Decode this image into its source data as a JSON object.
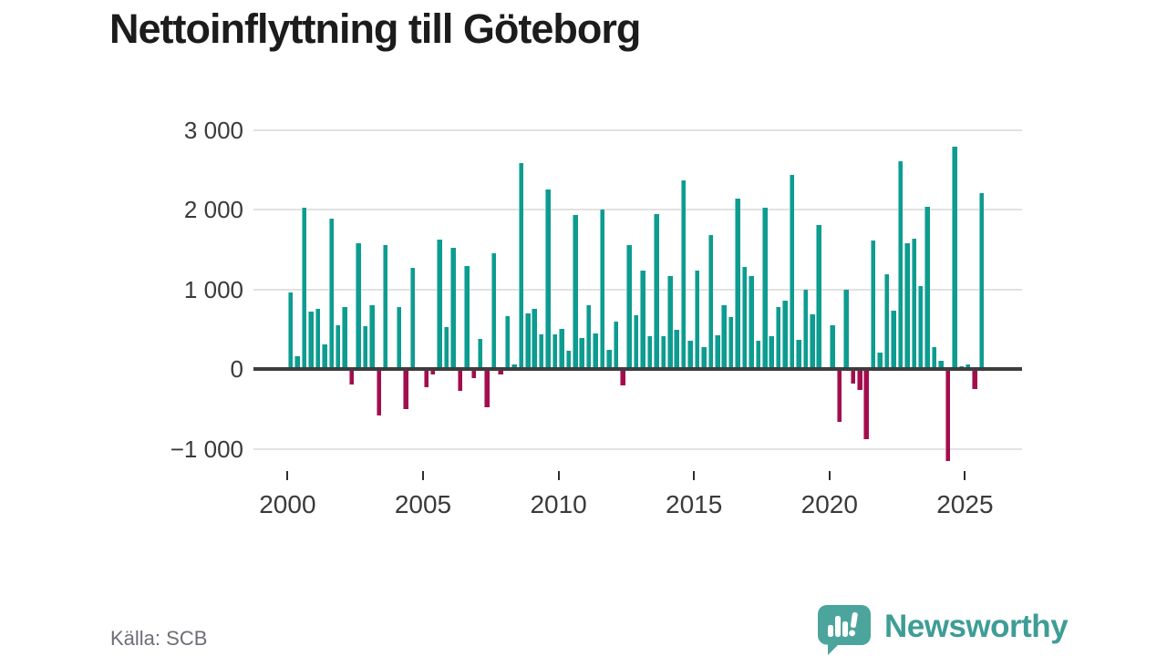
{
  "title": "Nettoinflyttning till Göteborg",
  "source": "Källa: SCB",
  "brand": {
    "name": "Newsworthy",
    "icon": "bar-chart-speech-bubble-icon",
    "text_color": "#3e9d96",
    "bubble_color": "#4ca59d"
  },
  "colors": {
    "positive_bar": "#0d9c90",
    "negative_bar": "#a30d4e",
    "axis_line": "#3d3d3d",
    "gridline": "#e2e2e2",
    "tick_label": "#3a3a3a",
    "source_text": "#6e6e76",
    "title_text": "#1c1c1c",
    "background": "#ffffff"
  },
  "chart_data": {
    "type": "bar",
    "title": "Nettoinflyttning till Göteborg",
    "xlabel": "",
    "ylabel": "",
    "frequency": "quarterly",
    "x_start": {
      "year": 2000,
      "quarter": 1
    },
    "x_end": {
      "year": 2025,
      "quarter": 3
    },
    "values": [
      955,
      165,
      2020,
      715,
      755,
      310,
      1890,
      550,
      780,
      -195,
      1580,
      540,
      800,
      -580,
      1550,
      20,
      780,
      -500,
      1270,
      10,
      -230,
      -70,
      1620,
      525,
      1520,
      -270,
      1290,
      -110,
      380,
      -480,
      1450,
      -65,
      665,
      55,
      2580,
      700,
      750,
      440,
      2250,
      430,
      505,
      225,
      1930,
      385,
      795,
      450,
      2000,
      235,
      600,
      -205,
      1560,
      670,
      1230,
      410,
      1940,
      415,
      1170,
      490,
      2370,
      350,
      1230,
      270,
      1680,
      420,
      800,
      655,
      2140,
      1280,
      1170,
      350,
      2020,
      410,
      775,
      860,
      2430,
      370,
      1000,
      690,
      1810,
      10,
      550,
      -665,
      990,
      -185,
      -265,
      -880,
      1615,
      210,
      1190,
      730,
      2610,
      1575,
      1635,
      1045,
      2040,
      280,
      100,
      -1150,
      2790,
      30,
      55,
      -250,
      2210
    ],
    "y_ticks": {
      "labels": [
        "3 000",
        "2 000",
        "1 000",
        "0",
        "−1 000"
      ],
      "values": [
        3000,
        2000,
        1000,
        0,
        -1000
      ]
    },
    "x_ticks": {
      "labels": [
        "2000",
        "2005",
        "2010",
        "2015",
        "2020",
        "2025"
      ],
      "quarter_index": [
        0,
        20,
        40,
        60,
        80,
        100
      ]
    },
    "ylim": [
      -1250,
      3150
    ],
    "grid": "horizontal",
    "legend": "none"
  }
}
